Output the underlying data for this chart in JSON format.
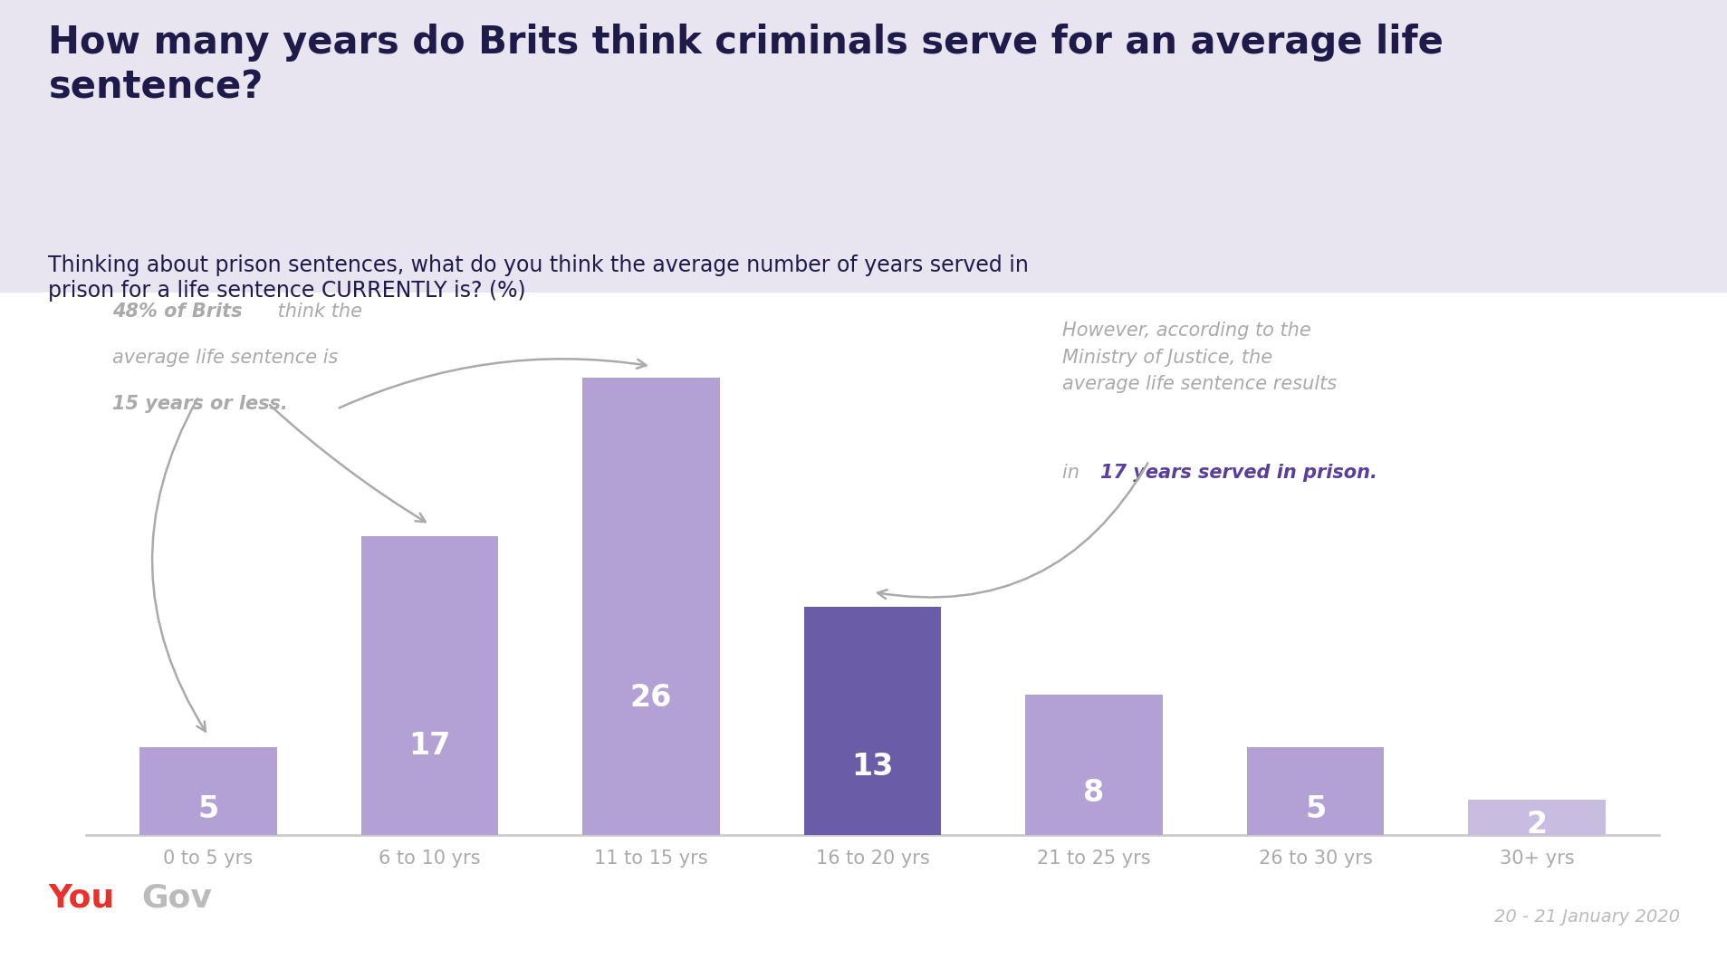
{
  "title": "How many years do Brits think criminals serve for an average life\nsentence?",
  "subtitle": "Thinking about prison sentences, what do you think the average number of years served in\nprison for a life sentence CURRENTLY is? (%)",
  "categories": [
    "0 to 5 yrs",
    "6 to 10 yrs",
    "11 to 15 yrs",
    "16 to 20 yrs",
    "21 to 25 yrs",
    "26 to 30 yrs",
    "30+ yrs"
  ],
  "values": [
    5,
    17,
    26,
    13,
    8,
    5,
    2
  ],
  "bar_colors": [
    "#b3a0d4",
    "#b3a0d4",
    "#b3a0d4",
    "#6b5ca8",
    "#b3a0d4",
    "#b3a0d4",
    "#c8bde0"
  ],
  "bar_label_color": "#ffffff",
  "title_color": "#1e1a4a",
  "subtitle_color": "#1e1a4a",
  "header_bg": "#e8e4f0",
  "chart_bg": "#ffffff",
  "annotation_color": "#aaaaaa",
  "annotation2_bold_color": "#5a3e9e",
  "date_text": "20 - 21 January 2020",
  "date_color": "#bbbbbb",
  "yougov_you_color": "#e8312a",
  "yougov_gov_color": "#bbbbbb",
  "axis_label_color": "#aaaaaa",
  "value_label_fontsize": 24,
  "title_fontsize": 30,
  "subtitle_fontsize": 17,
  "bar_width": 0.62
}
